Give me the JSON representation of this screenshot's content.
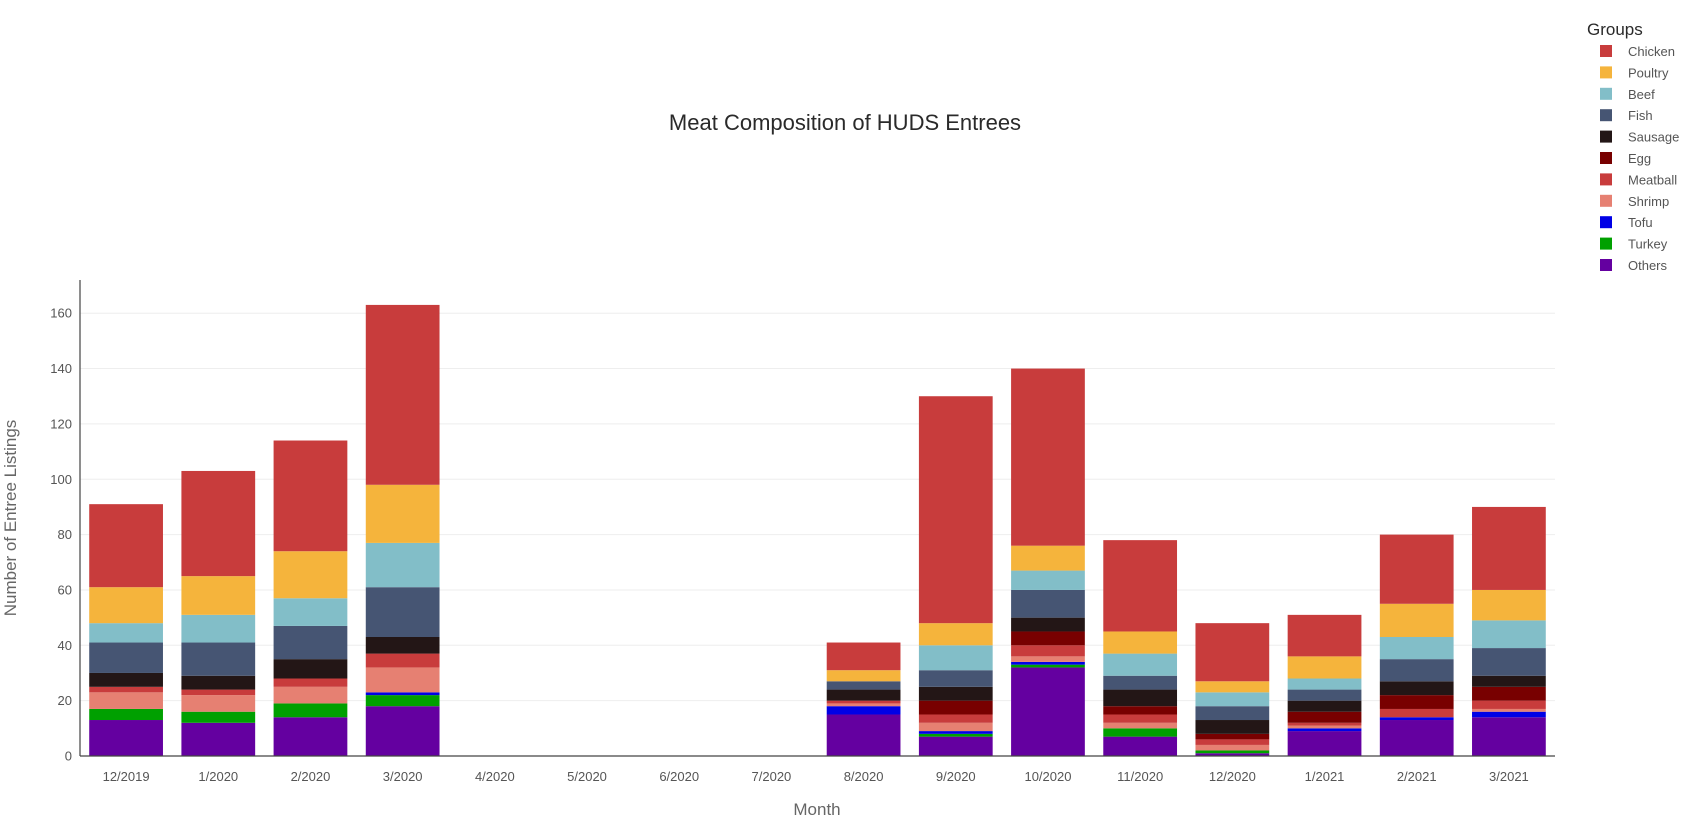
{
  "chart_data": {
    "type": "bar",
    "stacked": true,
    "title": "Meat Composition of HUDS Entrees",
    "xlabel": "Month",
    "ylabel": "Number of Entree Listings",
    "ylim": [
      0,
      172
    ],
    "yticks": [
      0,
      20,
      40,
      60,
      80,
      100,
      120,
      140,
      160
    ],
    "grid": true,
    "legend": {
      "title": "Groups",
      "position": "top-right"
    },
    "categories": [
      "12/2019",
      "1/2020",
      "2/2020",
      "3/2020",
      "4/2020",
      "5/2020",
      "6/2020",
      "7/2020",
      "8/2020",
      "9/2020",
      "10/2020",
      "11/2020",
      "12/2020",
      "1/2021",
      "2/2021",
      "3/2021"
    ],
    "series": [
      {
        "name": "Others",
        "color": "#6400a0",
        "values": [
          13,
          12,
          14,
          18,
          0,
          0,
          0,
          0,
          15,
          7,
          32,
          7,
          1,
          9,
          13,
          14
        ]
      },
      {
        "name": "Turkey",
        "color": "#00a000",
        "values": [
          4,
          4,
          5,
          4,
          0,
          0,
          0,
          0,
          0,
          1,
          1,
          3,
          1,
          0,
          0,
          0
        ]
      },
      {
        "name": "Tofu",
        "color": "#0000e6",
        "values": [
          0,
          0,
          0,
          1,
          0,
          0,
          0,
          0,
          3,
          1,
          1,
          0,
          0,
          1,
          1,
          2
        ]
      },
      {
        "name": "Shrimp",
        "color": "#e68072",
        "values": [
          6,
          6,
          6,
          9,
          0,
          0,
          0,
          0,
          1,
          3,
          2,
          2,
          2,
          1,
          0,
          1
        ]
      },
      {
        "name": "Meatball",
        "color": "#c83c3c",
        "values": [
          2,
          2,
          3,
          5,
          0,
          0,
          0,
          0,
          1,
          3,
          4,
          3,
          2,
          1,
          3,
          3
        ]
      },
      {
        "name": "Egg",
        "color": "#780000",
        "values": [
          0,
          0,
          0,
          0,
          0,
          0,
          0,
          0,
          0,
          5,
          5,
          3,
          2,
          4,
          5,
          5
        ]
      },
      {
        "name": "Sausage",
        "color": "#231616",
        "values": [
          5,
          5,
          7,
          6,
          0,
          0,
          0,
          0,
          4,
          5,
          5,
          6,
          5,
          4,
          5,
          4
        ]
      },
      {
        "name": "Fish",
        "color": "#465573",
        "values": [
          11,
          12,
          12,
          18,
          0,
          0,
          0,
          0,
          3,
          6,
          10,
          5,
          5,
          4,
          8,
          10
        ]
      },
      {
        "name": "Beef",
        "color": "#82bec8",
        "values": [
          7,
          10,
          10,
          16,
          0,
          0,
          0,
          0,
          0,
          9,
          7,
          8,
          5,
          4,
          8,
          10
        ]
      },
      {
        "name": "Poultry",
        "color": "#f5b43c",
        "values": [
          13,
          14,
          17,
          21,
          0,
          0,
          0,
          0,
          4,
          8,
          9,
          8,
          4,
          8,
          12,
          11
        ]
      },
      {
        "name": "Chicken",
        "color": "#c83c3c",
        "values": [
          30,
          38,
          40,
          65,
          0,
          0,
          0,
          0,
          10,
          82,
          64,
          33,
          21,
          15,
          25,
          30
        ]
      }
    ],
    "legend_order": [
      "Chicken",
      "Poultry",
      "Beef",
      "Fish",
      "Sausage",
      "Egg",
      "Meatball",
      "Shrimp",
      "Tofu",
      "Turkey",
      "Others"
    ]
  }
}
